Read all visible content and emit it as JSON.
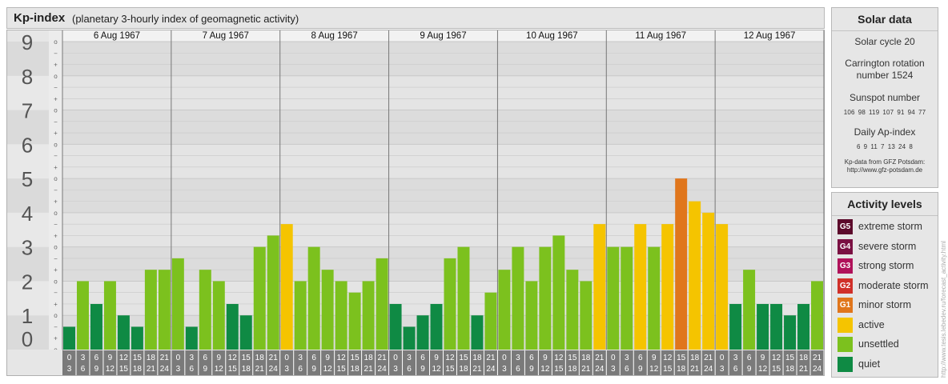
{
  "header": {
    "title": "Kp-index",
    "subtitle": "(planetary 3-hourly index of geomagnetic activity)"
  },
  "chart_data": {
    "type": "bar",
    "ylim": [
      0,
      9
    ],
    "y_tick_labels": [
      "0",
      "1",
      "2",
      "3",
      "4",
      "5",
      "6",
      "7",
      "8",
      "9"
    ],
    "sub_tick_labels": [
      "o",
      "+",
      "−"
    ],
    "days": [
      "6 Aug 1967",
      "7 Aug 1967",
      "8 Aug 1967",
      "9 Aug 1967",
      "10 Aug 1967",
      "11 Aug 1967",
      "12 Aug 1967"
    ],
    "hour_intervals": [
      [
        "0",
        "3"
      ],
      [
        "3",
        "6"
      ],
      [
        "6",
        "9"
      ],
      [
        "9",
        "12"
      ],
      [
        "12",
        "15"
      ],
      [
        "15",
        "18"
      ],
      [
        "18",
        "21"
      ],
      [
        "21",
        "24"
      ]
    ],
    "values": [
      [
        0.667,
        2.0,
        1.333,
        2.0,
        1.0,
        0.667,
        2.333,
        2.333
      ],
      [
        2.667,
        0.667,
        2.333,
        2.0,
        1.333,
        1.0,
        3.0,
        3.333
      ],
      [
        3.667,
        2.0,
        3.0,
        2.333,
        2.0,
        1.667,
        2.0,
        2.667
      ],
      [
        1.333,
        0.667,
        1.0,
        1.333,
        2.667,
        3.0,
        1.0,
        1.667
      ],
      [
        2.333,
        3.0,
        2.0,
        3.0,
        3.333,
        2.333,
        2.0,
        3.667
      ],
      [
        3.0,
        3.0,
        3.667,
        3.0,
        3.667,
        5.0,
        4.333,
        4.0
      ],
      [
        3.667,
        1.333,
        2.333,
        1.333,
        1.333,
        1.0,
        1.333,
        2.0
      ]
    ],
    "grid": true
  },
  "solar": {
    "title": "Solar data",
    "cycle": "Solar cycle 20",
    "carrington_line1": "Carrington rotation",
    "carrington_line2": "number 1524",
    "sunspot_label": "Sunspot number",
    "sunspots": [
      "106",
      "98",
      "119",
      "107",
      "91",
      "94",
      "77"
    ],
    "ap_label": "Daily Ap-index",
    "ap_values": [
      "6",
      "9",
      "11",
      "7",
      "13",
      "24",
      "8"
    ],
    "note_line1": "Kp-data from GFZ Potsdam:",
    "note_line2": "http://www.gfz-potsdam.de"
  },
  "levels": {
    "title": "Activity levels",
    "items": [
      {
        "code": "G5",
        "label": "extreme storm",
        "color": "#5c0a2b"
      },
      {
        "code": "G4",
        "label": "severe storm",
        "color": "#7a1042"
      },
      {
        "code": "G3",
        "label": "strong storm",
        "color": "#b0125a"
      },
      {
        "code": "G2",
        "label": "moderate storm",
        "color": "#d0302a"
      },
      {
        "code": "G1",
        "label": "minor storm",
        "color": "#e0761c"
      },
      {
        "code": "",
        "label": "active",
        "color": "#f5c400"
      },
      {
        "code": "",
        "label": "unsettled",
        "color": "#7cc11e"
      },
      {
        "code": "",
        "label": "quiet",
        "color": "#0f8a44"
      }
    ]
  },
  "watermark": "http://www.tesis.lebedev.ru/forecast_activity.html"
}
